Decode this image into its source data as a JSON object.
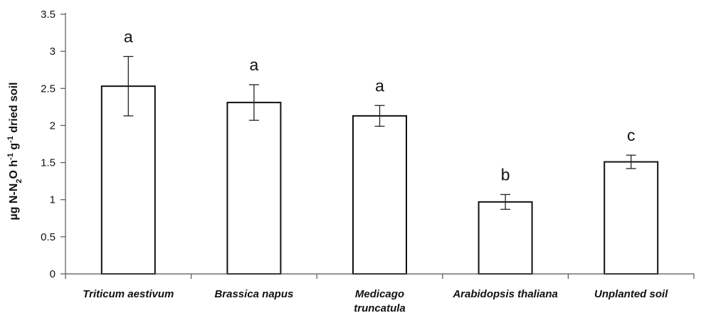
{
  "chart_data": {
    "type": "bar",
    "title": "",
    "ylabel": {
      "parts": [
        {
          "text": "µg N-N",
          "style": "normal"
        },
        {
          "text": "2",
          "style": "sub"
        },
        {
          "text": "O h",
          "style": "normal"
        },
        {
          "text": "-1",
          "style": "sup"
        },
        {
          "text": " g",
          "style": "normal"
        },
        {
          "text": "-1",
          "style": "sup"
        },
        {
          "text": " dried soil",
          "style": "normal"
        }
      ]
    },
    "xlabel": "",
    "ylim": [
      0,
      3.5
    ],
    "yticks": [
      "0",
      "0.5",
      "1",
      "1.5",
      "2",
      "2.5",
      "3",
      "3.5"
    ],
    "grid": false,
    "categories": [
      [
        "Triticum aestivum"
      ],
      [
        "Brassica napus"
      ],
      [
        "Medicago",
        "truncatula"
      ],
      [
        "Arabidopsis thaliana"
      ],
      [
        "Unplanted soil"
      ]
    ],
    "values": [
      2.53,
      2.31,
      2.13,
      0.97,
      1.51
    ],
    "errors": [
      0.4,
      0.24,
      0.14,
      0.1,
      0.09
    ],
    "significance": [
      "a",
      "a",
      "a",
      "b",
      "c"
    ]
  }
}
